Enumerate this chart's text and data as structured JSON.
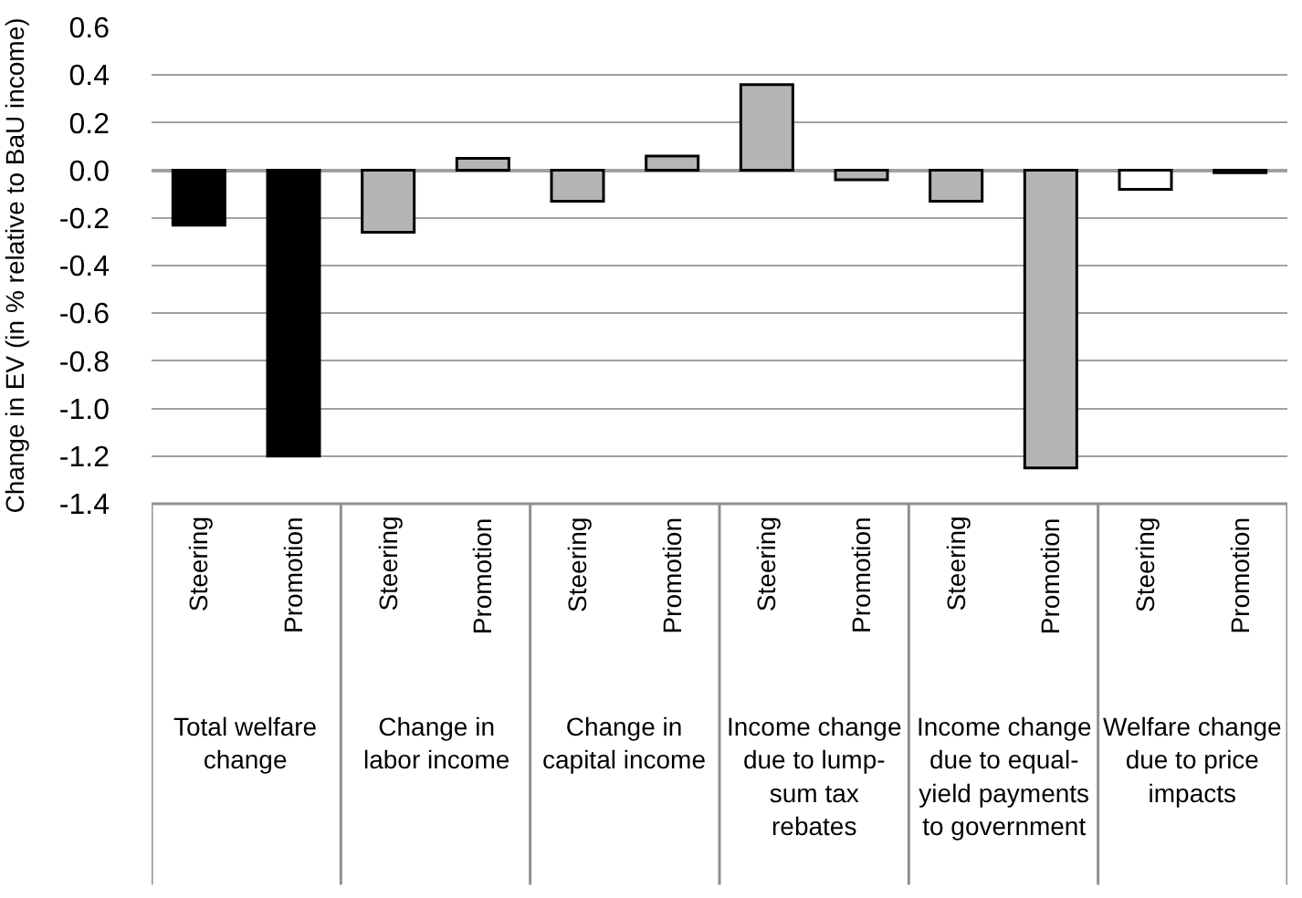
{
  "chart_data": {
    "type": "bar",
    "ylabel": "Change in EV (in % relative to BaU income)",
    "categories": [
      "Steering",
      "Promotion",
      "Steering",
      "Promotion",
      "Steering",
      "Promotion",
      "Steering",
      "Promotion",
      "Steering",
      "Promotion",
      "Steering",
      "Promotion"
    ],
    "values": [
      -0.23,
      -1.2,
      -0.26,
      0.05,
      -0.13,
      0.06,
      0.36,
      -0.04,
      -0.13,
      -1.25,
      -0.08,
      -0.01
    ],
    "colors": [
      "#000000",
      "#000000",
      "#b5b5b5",
      "#b5b5b5",
      "#b5b5b5",
      "#b5b5b5",
      "#b5b5b5",
      "#b5b5b5",
      "#b5b5b5",
      "#b5b5b5",
      "#ffffff",
      "#ffffff"
    ],
    "annotations": [
      "Total welfare change",
      "Change in labor income",
      "Change in capital income",
      "Income change due to lump-sum tax rebates",
      "Income change due to equal-yield payments to government",
      "Welfare change due to price impacts"
    ],
    "ylim": [
      -1.4,
      0.6
    ],
    "yticks": [
      {
        "value": -1.4,
        "label": "-1.4"
      },
      {
        "value": -1.2,
        "label": "-1.2"
      },
      {
        "value": -1.0,
        "label": "-1.0"
      },
      {
        "value": -0.8,
        "label": "-0.8"
      },
      {
        "value": -0.6,
        "label": "-0.6"
      },
      {
        "value": -0.4,
        "label": "-0.4"
      },
      {
        "value": -0.2,
        "label": "-0.2"
      },
      {
        "value": 0.0,
        "label": "0.0"
      },
      {
        "value": 0.2,
        "label": "0.2"
      },
      {
        "value": 0.4,
        "label": "0.4"
      },
      {
        "value": 0.6,
        "label": "0.6"
      }
    ],
    "grid": "y",
    "legend": false
  }
}
